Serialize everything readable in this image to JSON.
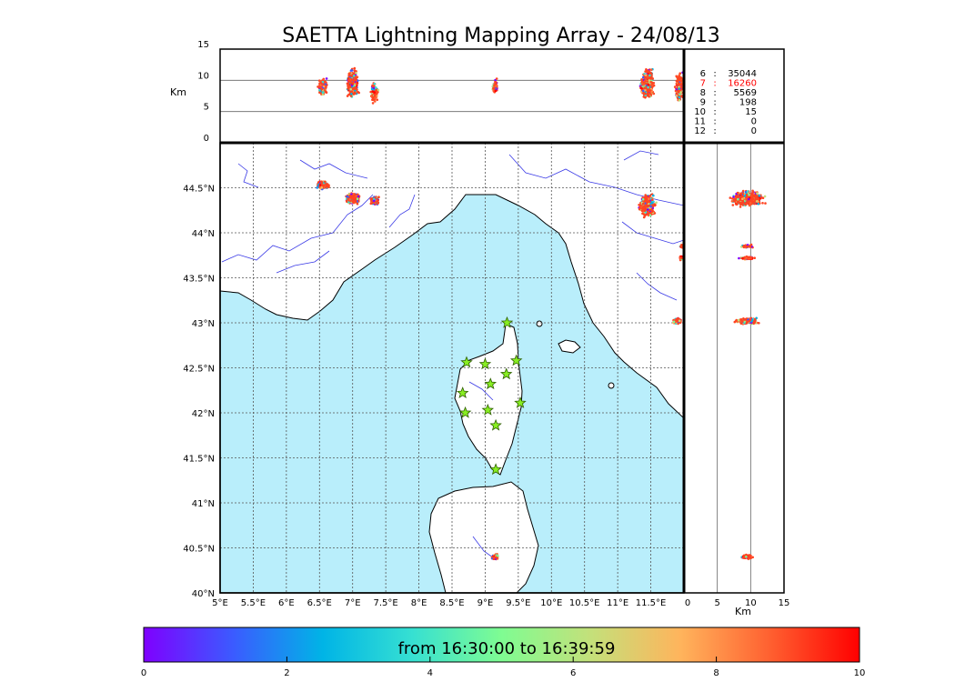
{
  "title": "SAETTA Lightning Mapping Array - 24/08/13",
  "colors": {
    "sea": "#b9eefb",
    "land": "#ffffff",
    "coast": "#000000",
    "rivers": "#3a3ae6",
    "grid": "#555555",
    "station_fill": "#88ee22",
    "station_stroke": "#2e5e00",
    "highlight_stat": "#ff0000",
    "dense_source": "#ff4422"
  },
  "colorbar": {
    "label": "from 16:30:00 to 16:39:59",
    "min": 0,
    "max": 10,
    "ticks": [
      "0",
      "2",
      "4",
      "6",
      "8",
      "10"
    ],
    "tick_values": [
      0,
      2,
      4,
      6,
      8,
      10
    ],
    "stops": [
      "#7f00ff",
      "#3b5bff",
      "#00b4e6",
      "#36e0d2",
      "#7ffc92",
      "#c4e07a",
      "#ffb45c",
      "#ff6030",
      "#ff0000"
    ]
  },
  "stats": [
    {
      "stations": "6",
      "sep": ":",
      "count": "35044",
      "highlight": false
    },
    {
      "stations": "7",
      "sep": ":",
      "count": "16260",
      "highlight": true
    },
    {
      "stations": "8",
      "sep": ":",
      "count": "5569",
      "highlight": false
    },
    {
      "stations": "9",
      "sep": ":",
      "count": "198",
      "highlight": false
    },
    {
      "stations": "10",
      "sep": ":",
      "count": "15",
      "highlight": false
    },
    {
      "stations": "11",
      "sep": ":",
      "count": "0",
      "highlight": false
    },
    {
      "stations": "12",
      "sep": ":",
      "count": "0",
      "highlight": false
    }
  ],
  "chart_data": [
    {
      "type": "scatter",
      "name": "map",
      "xlim": [
        5,
        12
      ],
      "ylim": [
        40,
        45
      ],
      "grid": true,
      "xticks": [
        5,
        5.5,
        6,
        6.5,
        7,
        7.5,
        8,
        8.5,
        9,
        9.5,
        10,
        10.5,
        11,
        11.5
      ],
      "xtick_labels": [
        "5°E",
        "5.5°E",
        "6°E",
        "6.5°E",
        "7°E",
        "7.5°E",
        "8°E",
        "8.5°E",
        "9°E",
        "9.5°E",
        "10°E",
        "10.5°E",
        "11°E",
        "11.5°E"
      ],
      "yticks": [
        40,
        40.5,
        41,
        41.5,
        42,
        42.5,
        43,
        43.5,
        44,
        44.5
      ],
      "ytick_labels": [
        "40°N",
        "40.5°N",
        "41°N",
        "41.5°N",
        "42°N",
        "42.5°N",
        "43°N",
        "43.5°N",
        "44°N",
        "44.5°N"
      ],
      "stations": [
        {
          "lon": 9.33,
          "lat": 43.0
        },
        {
          "lon": 8.72,
          "lat": 42.56
        },
        {
          "lon": 9.0,
          "lat": 42.54
        },
        {
          "lon": 9.47,
          "lat": 42.58
        },
        {
          "lon": 9.32,
          "lat": 42.43
        },
        {
          "lon": 9.08,
          "lat": 42.32
        },
        {
          "lon": 8.66,
          "lat": 42.22
        },
        {
          "lon": 9.53,
          "lat": 42.11
        },
        {
          "lon": 8.7,
          "lat": 42.0
        },
        {
          "lon": 9.04,
          "lat": 42.03
        },
        {
          "lon": 9.16,
          "lat": 41.86
        },
        {
          "lon": 9.16,
          "lat": 41.37
        }
      ],
      "source_clusters": [
        {
          "lon": 6.55,
          "lat": 44.53,
          "lon_spread": 0.1,
          "lat_spread": 0.05,
          "n": 260
        },
        {
          "lon": 7.0,
          "lat": 44.38,
          "lon_spread": 0.12,
          "lat_spread": 0.07,
          "n": 420
        },
        {
          "lon": 7.33,
          "lat": 44.36,
          "lon_spread": 0.07,
          "lat_spread": 0.05,
          "n": 170
        },
        {
          "lon": 11.45,
          "lat": 44.3,
          "lon_spread": 0.14,
          "lat_spread": 0.14,
          "n": 520
        },
        {
          "lon": 11.97,
          "lat": 43.85,
          "lon_spread": 0.03,
          "lat_spread": 0.02,
          "n": 25
        },
        {
          "lon": 11.96,
          "lat": 43.72,
          "lon_spread": 0.03,
          "lat_spread": 0.03,
          "n": 40
        },
        {
          "lon": 11.9,
          "lat": 43.02,
          "lon_spread": 0.08,
          "lat_spread": 0.04,
          "n": 120
        },
        {
          "lon": 9.15,
          "lat": 40.4,
          "lon_spread": 0.06,
          "lat_spread": 0.04,
          "n": 90
        }
      ]
    },
    {
      "type": "scatter",
      "name": "altitude-vs-longitude",
      "xlim": [
        5,
        12
      ],
      "ylim": [
        0,
        15
      ],
      "ylabel": "Km",
      "yticks": [
        0,
        5,
        10,
        15
      ],
      "ytick_labels": [
        "0",
        "5",
        "10",
        "15"
      ],
      "hlines": [
        5,
        10
      ],
      "source_columns": [
        {
          "lon": 6.55,
          "alt": 9.0,
          "lon_spread": 0.08,
          "alt_spread": 1.6,
          "n": 220
        },
        {
          "lon": 7.0,
          "alt": 9.5,
          "lon_spread": 0.1,
          "alt_spread": 2.8,
          "n": 420
        },
        {
          "lon": 7.33,
          "alt": 8.0,
          "lon_spread": 0.06,
          "alt_spread": 1.8,
          "n": 180
        },
        {
          "lon": 9.15,
          "alt": 9.0,
          "lon_spread": 0.05,
          "alt_spread": 1.4,
          "n": 70
        },
        {
          "lon": 11.45,
          "alt": 9.5,
          "lon_spread": 0.12,
          "alt_spread": 2.8,
          "n": 520
        },
        {
          "lon": 11.93,
          "alt": 9.0,
          "lon_spread": 0.07,
          "alt_spread": 2.8,
          "n": 200
        }
      ]
    },
    {
      "type": "scatter",
      "name": "latitude-vs-altitude",
      "xlim": [
        0,
        15
      ],
      "ylim": [
        40,
        45
      ],
      "xlabel": "Km",
      "xticks": [
        0,
        5,
        10,
        15
      ],
      "xtick_labels": [
        "0",
        "5",
        "10",
        "15"
      ],
      "vlines": [
        5,
        10
      ],
      "source_rows": [
        {
          "alt": 9.5,
          "lat": 44.38,
          "alt_spread": 2.8,
          "lat_spread": 0.1,
          "n": 620
        },
        {
          "alt": 9.5,
          "lat": 43.85,
          "alt_spread": 1.2,
          "lat_spread": 0.02,
          "n": 40
        },
        {
          "alt": 9.5,
          "lat": 43.72,
          "alt_spread": 1.4,
          "lat_spread": 0.02,
          "n": 60
        },
        {
          "alt": 9.5,
          "lat": 43.02,
          "alt_spread": 2.2,
          "lat_spread": 0.04,
          "n": 200
        },
        {
          "alt": 9.5,
          "lat": 40.4,
          "alt_spread": 1.0,
          "lat_spread": 0.03,
          "n": 80
        }
      ]
    }
  ]
}
